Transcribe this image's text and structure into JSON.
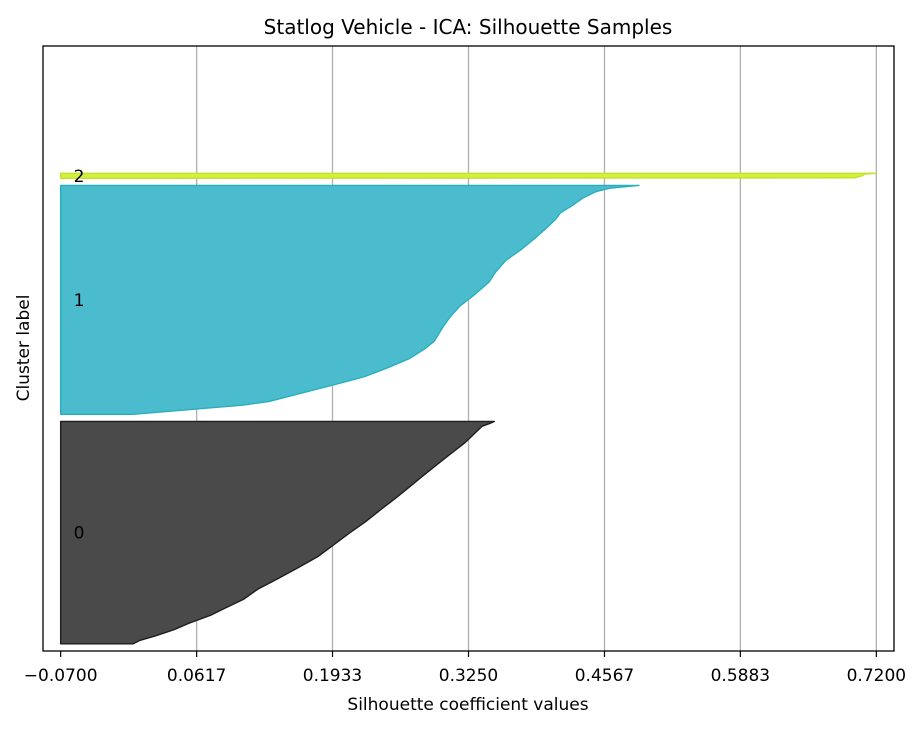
{
  "chart_data": {
    "type": "area",
    "title": "Statlog Vehicle - ICA: Silhouette Samples",
    "xlabel": "Silhouette coefficient values",
    "ylabel": "Cluster label",
    "xlim": [
      -0.0871,
      0.7371
    ],
    "ylim": [
      0,
      846
    ],
    "xticks": [
      "-0.0700",
      "0.0617",
      "0.1933",
      "0.3250",
      "0.4567",
      "0.5883",
      "0.7200"
    ],
    "xtick_values": [
      -0.07,
      0.0617,
      0.1933,
      0.325,
      0.4567,
      0.5883,
      0.72
    ],
    "grid": "x",
    "clusters": [
      {
        "label": "0",
        "color": "#4a4a4a",
        "edge_color": "#1e1e1e",
        "y_start": 10,
        "y_end": 321,
        "profile": [
          [
            0.0,
            0.0
          ],
          [
            0.016,
            0.007
          ],
          [
            0.036,
            0.022
          ],
          [
            0.064,
            0.04
          ],
          [
            0.092,
            0.054
          ],
          [
            0.128,
            0.075
          ],
          [
            0.158,
            0.088
          ],
          [
            0.2,
            0.107
          ],
          [
            0.246,
            0.121
          ],
          [
            0.292,
            0.14
          ],
          [
            0.34,
            0.159
          ],
          [
            0.392,
            0.179
          ],
          [
            0.44,
            0.193
          ],
          [
            0.496,
            0.209
          ],
          [
            0.548,
            0.225
          ],
          [
            0.6,
            0.239
          ],
          [
            0.65,
            0.253
          ],
          [
            0.706,
            0.268
          ],
          [
            0.756,
            0.281
          ],
          [
            0.808,
            0.295
          ],
          [
            0.848,
            0.306
          ],
          [
            0.902,
            0.321
          ],
          [
            0.942,
            0.33
          ],
          [
            0.978,
            0.338
          ],
          [
            0.99,
            0.345
          ],
          [
            1.0,
            0.35
          ]
        ]
      },
      {
        "label": "1",
        "color": "#4bbccd",
        "edge_color": "#2aaebe",
        "y_start": 331,
        "y_end": 651,
        "profile": [
          [
            0.0,
            0.0
          ],
          [
            0.04,
            0.106
          ],
          [
            0.056,
            0.132
          ],
          [
            0.09,
            0.161
          ],
          [
            0.128,
            0.194
          ],
          [
            0.164,
            0.224
          ],
          [
            0.202,
            0.246
          ],
          [
            0.244,
            0.268
          ],
          [
            0.284,
            0.282
          ],
          [
            0.32,
            0.292
          ],
          [
            0.38,
            0.3
          ],
          [
            0.43,
            0.308
          ],
          [
            0.474,
            0.317
          ],
          [
            0.52,
            0.33
          ],
          [
            0.578,
            0.345
          ],
          [
            0.62,
            0.351
          ],
          [
            0.672,
            0.361
          ],
          [
            0.72,
            0.376
          ],
          [
            0.768,
            0.389
          ],
          [
            0.812,
            0.4
          ],
          [
            0.85,
            0.409
          ],
          [
            0.88,
            0.414
          ],
          [
            0.914,
            0.426
          ],
          [
            0.946,
            0.436
          ],
          [
            0.974,
            0.449
          ],
          [
            0.988,
            0.462
          ],
          [
            1.0,
            0.49
          ]
        ]
      },
      {
        "label": "2",
        "color": "#d4f03c",
        "edge_color": "#c4e02c",
        "y_start": 661,
        "y_end": 668,
        "profile": [
          [
            0.0,
            0.0
          ],
          [
            0.1,
            0.699
          ],
          [
            0.5,
            0.706
          ],
          [
            0.86,
            0.709
          ],
          [
            1.0,
            0.72
          ]
        ]
      }
    ]
  }
}
